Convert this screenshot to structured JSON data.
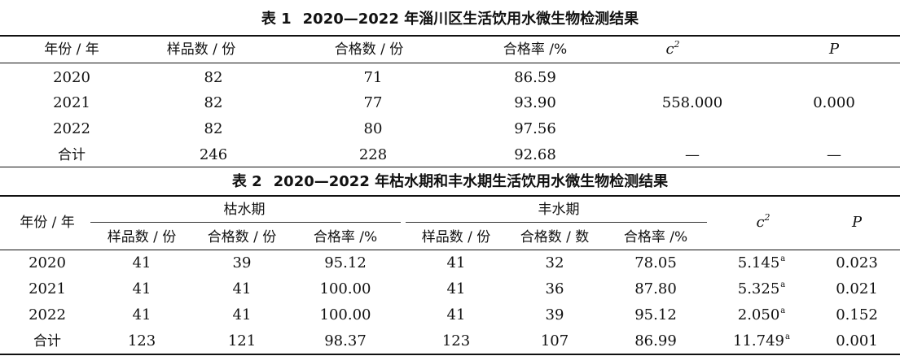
{
  "table1": {
    "number": "表 1",
    "title": "2020—2022 年淄川区生活饮用水微生物检测结果",
    "headers": [
      "年份 / 年",
      "样品数 / 份",
      "合格数 / 份",
      "合格率 /%",
      "c",
      "P"
    ],
    "chi_sup": "2",
    "rows": [
      {
        "year": "2020",
        "samples": "82",
        "qualified": "71",
        "rate": "86.59"
      },
      {
        "year": "2021",
        "samples": "82",
        "qualified": "77",
        "rate": "93.90"
      },
      {
        "year": "2022",
        "samples": "82",
        "qualified": "80",
        "rate": "97.56"
      },
      {
        "year": "合计",
        "samples": "246",
        "qualified": "228",
        "rate": "92.68"
      }
    ],
    "chi_value": "558.000",
    "p_value": "0.000",
    "total_chi": "—",
    "total_p": "—"
  },
  "table2": {
    "number": "表 2",
    "title": "2020—2022 年枯水期和丰水期生活饮用水微生物检测结果",
    "year_header": "年份 / 年",
    "dry_header": "枯水期",
    "wet_header": "丰水期",
    "sub_headers": [
      "样品数 / 份",
      "合格数 / 份",
      "合格率 /%",
      "样品数 / 份",
      "合格数 / 数",
      "合格率 /%"
    ],
    "chi_header": "c",
    "chi_sup": "2",
    "p_header": "P",
    "sup_mark": "a",
    "rows": [
      {
        "year": "2020",
        "dry_samples": "41",
        "dry_qualified": "39",
        "dry_rate": "95.12",
        "wet_samples": "41",
        "wet_qualified": "32",
        "wet_rate": "78.05",
        "chi": "5.145",
        "p": "0.023"
      },
      {
        "year": "2021",
        "dry_samples": "41",
        "dry_qualified": "41",
        "dry_rate": "100.00",
        "wet_samples": "41",
        "wet_qualified": "36",
        "wet_rate": "87.80",
        "chi": "5.325",
        "p": "0.021"
      },
      {
        "year": "2022",
        "dry_samples": "41",
        "dry_qualified": "41",
        "dry_rate": "100.00",
        "wet_samples": "41",
        "wet_qualified": "39",
        "wet_rate": "95.12",
        "chi": "2.050",
        "p": "0.152"
      },
      {
        "year": "合计",
        "dry_samples": "123",
        "dry_qualified": "121",
        "dry_rate": "98.37",
        "wet_samples": "123",
        "wet_qualified": "107",
        "wet_rate": "86.99",
        "chi": "11.749",
        "p": "0.001"
      }
    ]
  }
}
